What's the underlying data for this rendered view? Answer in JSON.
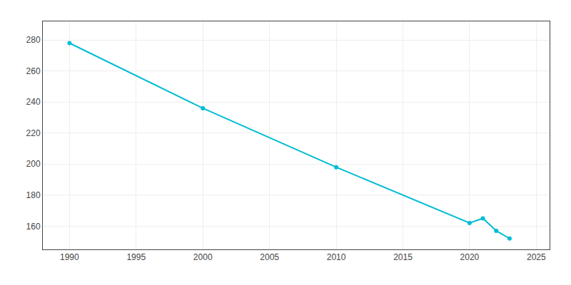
{
  "chart_data": {
    "type": "line",
    "x": [
      1990,
      2000,
      2010,
      2020,
      2021,
      2022,
      2023
    ],
    "values": [
      278,
      236,
      198,
      162,
      165,
      157,
      152
    ],
    "color": "#00BCD4",
    "marker": "circle",
    "xlim": [
      1988,
      2026
    ],
    "xticks": [
      1990,
      1995,
      2000,
      2005,
      2010,
      2015,
      2020,
      2025
    ],
    "ylim": [
      145,
      292
    ],
    "yticks": [
      160,
      180,
      200,
      220,
      240,
      260,
      280
    ],
    "grid": true
  }
}
